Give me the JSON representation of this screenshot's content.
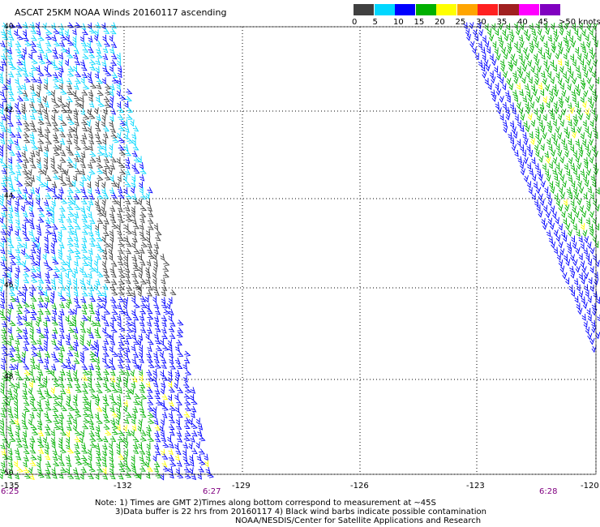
{
  "title": "ASCAT 25KM NOAA Winds 20160117 ascending",
  "scale": {
    "colors": [
      "#404040",
      "#00d7ff",
      "#0000ff",
      "#00b000",
      "#ffff00",
      "#ffa500",
      "#ff2020",
      "#a02020",
      "#ff00ff",
      "#8000c0"
    ],
    "labels": [
      "0",
      "5",
      "10",
      "15",
      "20",
      "25",
      "30",
      "35",
      "40",
      "45",
      ">50 knots"
    ]
  },
  "longitude_labels": [
    "-135",
    "-132",
    "-129",
    "-126",
    "-123",
    "-120"
  ],
  "latitude_labels": [
    "40",
    "42",
    "44",
    "46",
    "48",
    "50"
  ],
  "time_labels": [
    "6:25",
    "6:27",
    "6:28"
  ],
  "notes": {
    "line1": "Note: 1) Times are GMT 2)Times along bottom correspond to measurement at ~45S",
    "line2": "3)Data buffer is 22 hrs from 20160117 4) Black wind barbs indicate possible contamination",
    "line3": "NOAA/NESDIS/Center for Satellite Applications and Research"
  }
}
